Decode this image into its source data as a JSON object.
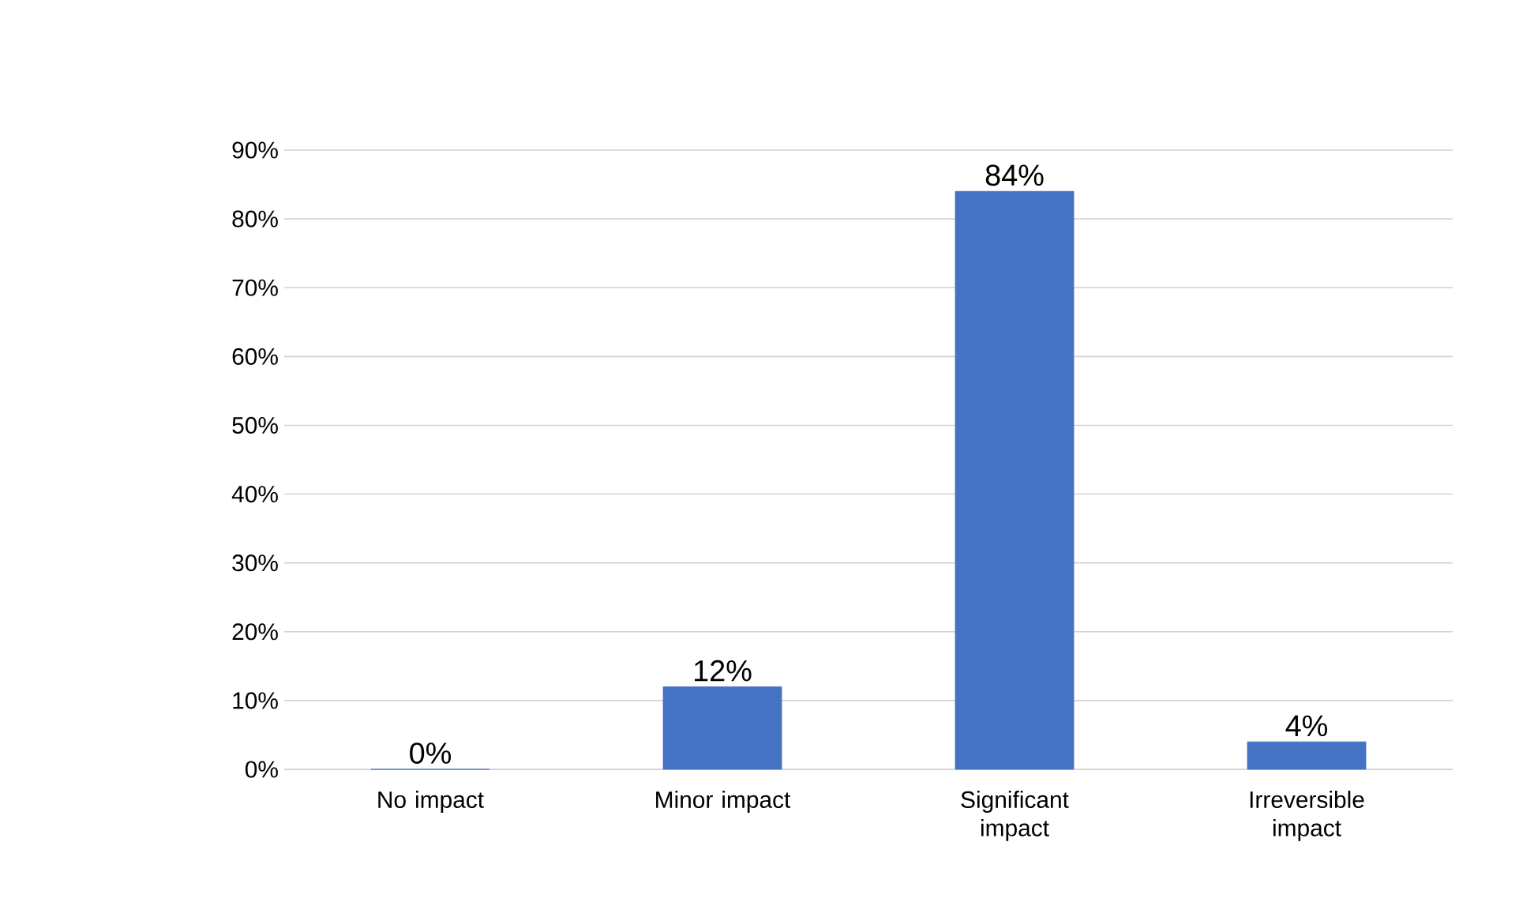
{
  "chart_data": {
    "type": "bar",
    "categories": [
      "No impact",
      "Minor impact",
      "Significant impact",
      "Irreversible impact"
    ],
    "values": [
      0,
      12,
      84,
      4
    ],
    "value_labels": [
      "0%",
      "12%",
      "84%",
      "4%"
    ],
    "color": "#4472c4",
    "ylim": [
      0,
      90
    ],
    "yticks": [
      {
        "value": 0,
        "label": "0%"
      },
      {
        "value": 10,
        "label": "10%"
      },
      {
        "value": 20,
        "label": "20%"
      },
      {
        "value": 30,
        "label": "30%"
      },
      {
        "value": 40,
        "label": "40%"
      },
      {
        "value": 50,
        "label": "50%"
      },
      {
        "value": 60,
        "label": "60%"
      },
      {
        "value": 70,
        "label": "70%"
      },
      {
        "value": 80,
        "label": "80%"
      },
      {
        "value": 90,
        "label": "90%"
      }
    ],
    "grid": "y"
  }
}
